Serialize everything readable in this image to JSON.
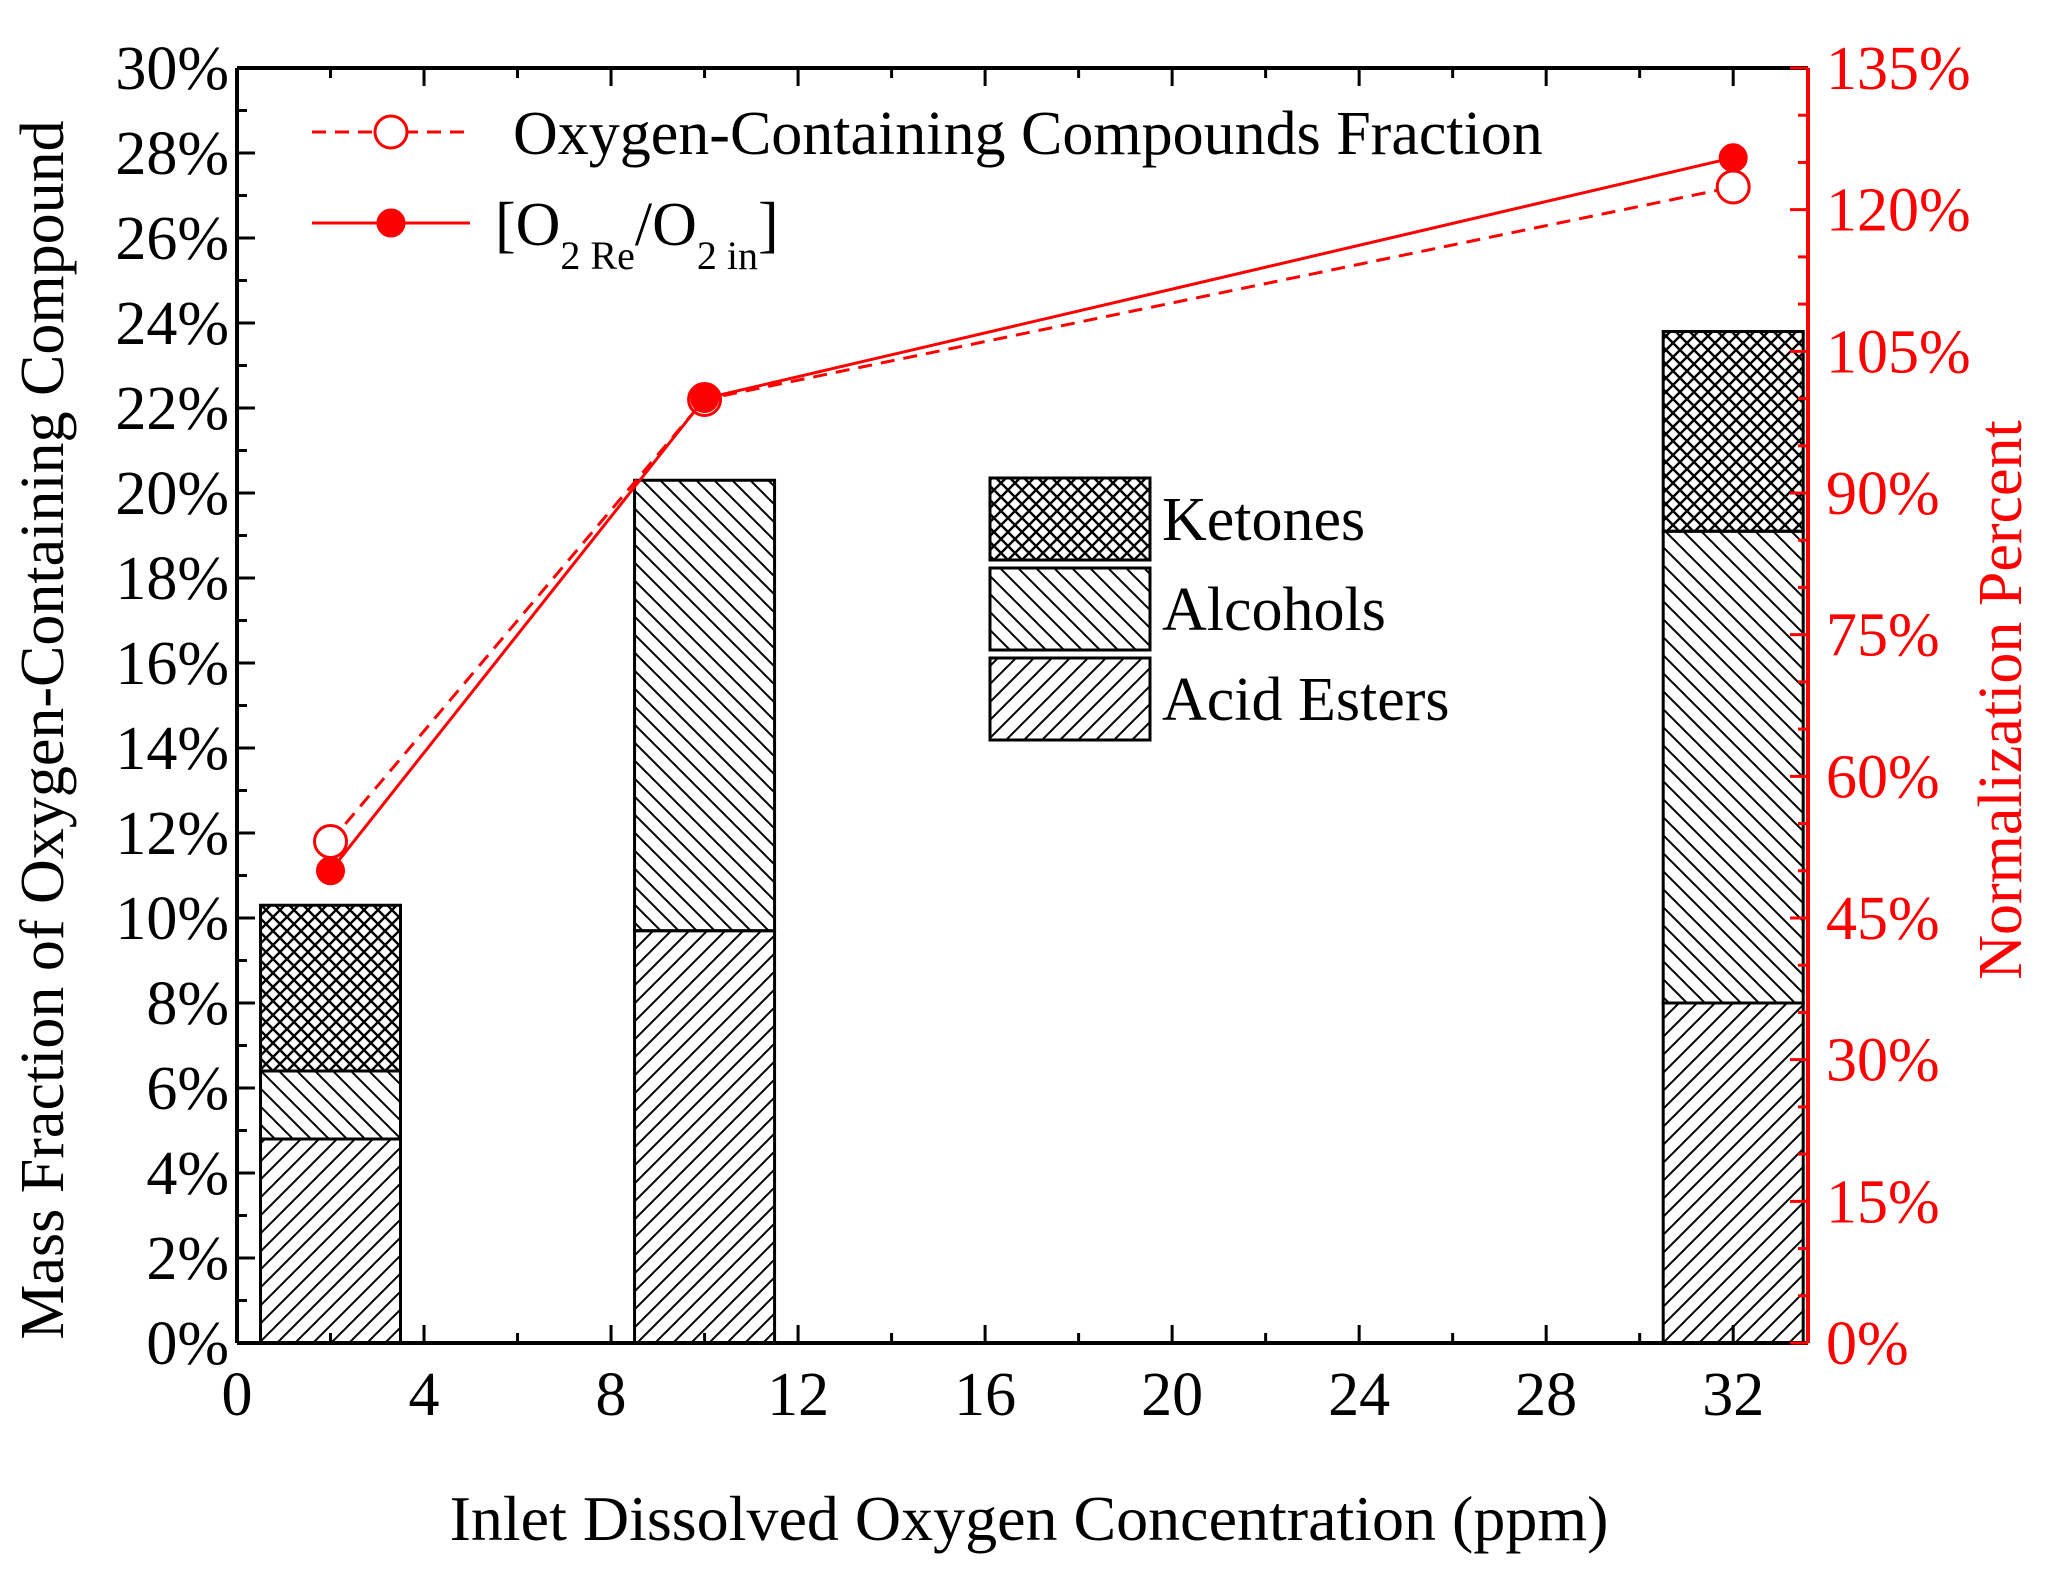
{
  "chart_data": {
    "type": "bar",
    "xlabel": "Inlet Dissolved Oxygen Concentration (ppm)",
    "ylabel": "Mass Fraction of Oxygen-Containing Compound",
    "y2label": "Normalization Percent",
    "xlim": [
      0,
      33.6
    ],
    "xticks": [
      0,
      4,
      8,
      12,
      16,
      20,
      24,
      28,
      32
    ],
    "ylim": [
      0,
      30
    ],
    "yticks": [
      "0%",
      "2%",
      "4%",
      "6%",
      "8%",
      "10%",
      "12%",
      "14%",
      "16%",
      "18%",
      "20%",
      "22%",
      "24%",
      "26%",
      "28%",
      "30%"
    ],
    "y2lim": [
      0,
      135
    ],
    "y2ticks": [
      "0%",
      "15%",
      "30%",
      "45%",
      "60%",
      "75%",
      "90%",
      "105%",
      "120%",
      "135%"
    ],
    "categories": [
      2,
      10,
      32
    ],
    "stacked_series": [
      {
        "name": "Acid Esters",
        "values": [
          4.8,
          9.7,
          8.0
        ],
        "pattern": "hatch-forward"
      },
      {
        "name": "Alcohols",
        "values": [
          1.6,
          10.6,
          11.1
        ],
        "pattern": "hatch-backward"
      },
      {
        "name": "Ketones",
        "values": [
          3.9,
          0.0,
          4.7
        ],
        "pattern": "crosshatch"
      }
    ],
    "line_series": [
      {
        "name": "Oxygen-Containing Compounds Fraction",
        "axis": "left",
        "style": "dashed",
        "marker": "open-circle",
        "x": [
          2,
          10,
          32
        ],
        "y": [
          11.8,
          22.2,
          27.2
        ]
      },
      {
        "name": "[O2 Re/O2 in]",
        "axis": "right",
        "style": "solid",
        "marker": "filled-circle",
        "x": [
          2,
          10,
          32
        ],
        "y": [
          50,
          100,
          125.5
        ]
      }
    ],
    "legend_lines": [
      {
        "text": "Oxygen-Containing Compounds Fraction"
      },
      {
        "main1": "[O",
        "sub1": "2 Re",
        "main2": "/O",
        "sub2": "2 in",
        "main3": "]"
      }
    ],
    "legend_placement": "top-left (lines), center-right (bars)",
    "colors": {
      "axis_left": "#000000",
      "axis_right": "#ff0000",
      "line": "#ff0000",
      "bar_fill": "#ffffff",
      "hatch": "#000000"
    }
  }
}
